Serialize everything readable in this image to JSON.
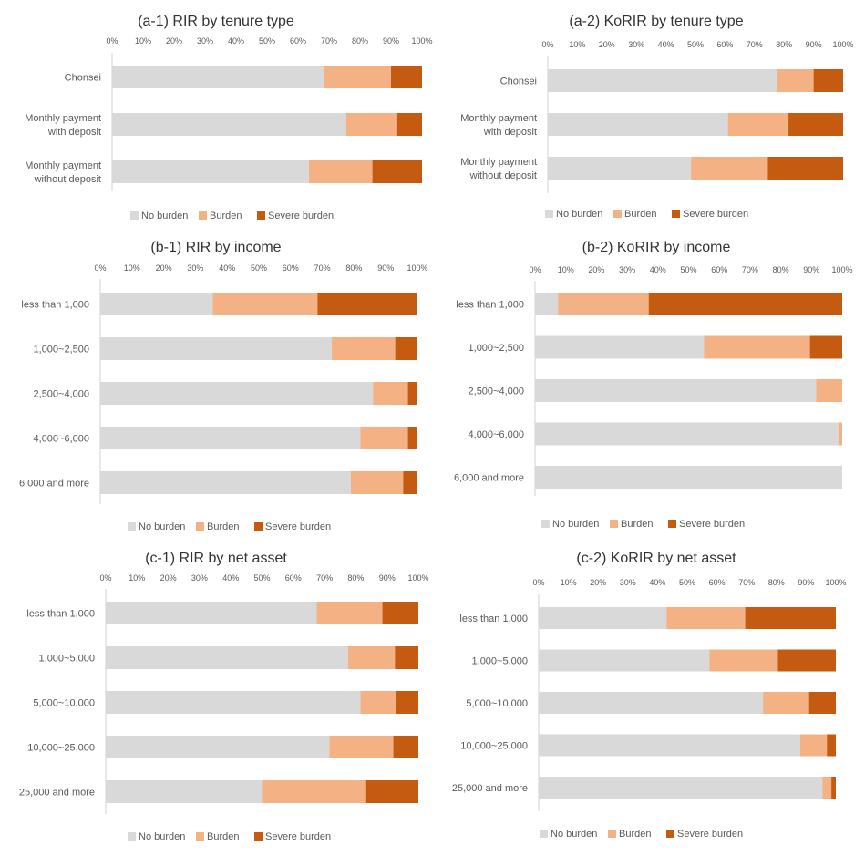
{
  "colors": {
    "no_burden": "#d9d9d9",
    "burden": "#f4b183",
    "severe": "#c55a11"
  },
  "chart_data": [
    {
      "id": "a1",
      "type": "bar",
      "orientation": "horizontal",
      "stacked": true,
      "title": "(a-1) RIR by tenure type",
      "ticks": [
        "0%",
        "10%",
        "20%",
        "30%",
        "40%",
        "50%",
        "60%",
        "70%",
        "80%",
        "90%",
        "100%"
      ],
      "categories": [
        "Chonsei",
        "Monthly payment\nwith deposit",
        "Monthly payment\nwithout deposit"
      ],
      "series": [
        {
          "name": "No burden",
          "values": [
            68.5,
            75.5,
            63.5
          ]
        },
        {
          "name": "Burden",
          "values": [
            21.5,
            16.5,
            20.5
          ]
        },
        {
          "name": "Severe burden",
          "values": [
            10,
            8,
            16
          ]
        }
      ],
      "legend": [
        "No burden",
        "Burden",
        "Severe burden"
      ],
      "xlim": [
        0,
        100
      ]
    },
    {
      "id": "a2",
      "type": "bar",
      "orientation": "horizontal",
      "stacked": true,
      "title": "(a-2) KoRIR by tenure type",
      "ticks": [
        "0%",
        "10%",
        "20%",
        "30%",
        "40%",
        "50%",
        "60%",
        "70%",
        "80%",
        "90%",
        "100%"
      ],
      "categories": [
        "Chonsei",
        "Monthly payment\nwith deposit",
        "Monthly payment\nwithout deposit"
      ],
      "series": [
        {
          "name": "No burden",
          "values": [
            77.5,
            61,
            48.5
          ]
        },
        {
          "name": "Burden",
          "values": [
            12.5,
            20.5,
            26
          ]
        },
        {
          "name": "Severe burden",
          "values": [
            10,
            18.5,
            25.5
          ]
        }
      ],
      "legend": [
        "No burden",
        "Burden",
        "Severe burden"
      ],
      "xlim": [
        0,
        100
      ]
    },
    {
      "id": "b1",
      "type": "bar",
      "orientation": "horizontal",
      "stacked": true,
      "title": "(b-1) RIR by income",
      "ticks": [
        "0%",
        "10%",
        "20%",
        "30%",
        "40%",
        "50%",
        "60%",
        "70%",
        "80%",
        "90%",
        "100%"
      ],
      "categories": [
        "less than 1,000",
        "1,000~2,500",
        "2,500~4,000",
        "4,000~6,000",
        "6,000 and more"
      ],
      "series": [
        {
          "name": "No burden",
          "values": [
            35.5,
            73,
            86,
            82,
            79
          ]
        },
        {
          "name": "Burden",
          "values": [
            33,
            20,
            11,
            15,
            16.5
          ]
        },
        {
          "name": "Severe burden",
          "values": [
            31.5,
            7,
            3,
            3,
            4.5
          ]
        }
      ],
      "legend": [
        "No burden",
        "Burden",
        "Severe burden"
      ],
      "xlim": [
        0,
        100
      ]
    },
    {
      "id": "b2",
      "type": "bar",
      "orientation": "horizontal",
      "stacked": true,
      "title": "(b-2) KoRIR by income",
      "ticks": [
        "0%",
        "10%",
        "20%",
        "30%",
        "40%",
        "50%",
        "60%",
        "70%",
        "80%",
        "90%",
        "100%"
      ],
      "categories": [
        "less than 1,000",
        "1,000~2,500",
        "2,500~4,000",
        "4,000~6,000",
        "6,000 and more"
      ],
      "series": [
        {
          "name": "No burden",
          "values": [
            7.5,
            55,
            91.5,
            99,
            100
          ]
        },
        {
          "name": "Burden",
          "values": [
            29.5,
            34.5,
            8.5,
            1,
            0
          ]
        },
        {
          "name": "Severe burden",
          "values": [
            63,
            10.5,
            0,
            0,
            0
          ]
        }
      ],
      "legend": [
        "No burden",
        "Burden",
        "Severe burden"
      ],
      "xlim": [
        0,
        100
      ]
    },
    {
      "id": "c1",
      "type": "bar",
      "orientation": "horizontal",
      "stacked": true,
      "title": "(c-1) RIR by net asset",
      "ticks": [
        "0%",
        "10%",
        "20%",
        "30%",
        "40%",
        "50%",
        "60%",
        "70%",
        "80%",
        "90%",
        "100%"
      ],
      "categories": [
        "less than 1,000",
        "1,000~5,000",
        "5,000~10,000",
        "10,000~25,000",
        "25,000 and more"
      ],
      "series": [
        {
          "name": "No burden",
          "values": [
            67.5,
            77.5,
            81.5,
            71.5,
            50
          ]
        },
        {
          "name": "Burden",
          "values": [
            21,
            15,
            11.5,
            20.5,
            33
          ]
        },
        {
          "name": "Severe burden",
          "values": [
            11.5,
            7.5,
            7,
            8,
            17
          ]
        }
      ],
      "legend": [
        "No burden",
        "Burden",
        "Severe burden"
      ],
      "xlim": [
        0,
        100
      ]
    },
    {
      "id": "c2",
      "type": "bar",
      "orientation": "horizontal",
      "stacked": true,
      "title": "(c-2) KoRIR by net asset",
      "ticks": [
        "0%",
        "10%",
        "20%",
        "30%",
        "40%",
        "50%",
        "60%",
        "70%",
        "80%",
        "90%",
        "100%"
      ],
      "categories": [
        "less than 1,000",
        "1,000~5,000",
        "5,000~10,000",
        "10,000~25,000",
        "25,000 and more"
      ],
      "series": [
        {
          "name": "No burden",
          "values": [
            43,
            57.5,
            75.5,
            88,
            95.5
          ]
        },
        {
          "name": "Burden",
          "values": [
            26.5,
            23,
            15.5,
            9,
            3
          ]
        },
        {
          "name": "Severe burden",
          "values": [
            30.5,
            19.5,
            9,
            3,
            1.5
          ]
        }
      ],
      "legend": [
        "No burden",
        "Burden",
        "Severe burden"
      ],
      "xlim": [
        0,
        100
      ]
    }
  ]
}
